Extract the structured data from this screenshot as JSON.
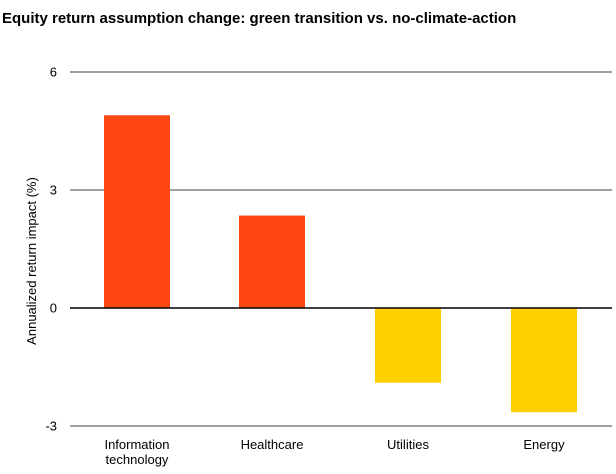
{
  "chart_data": {
    "type": "bar",
    "title": "Equity return assumption change: green transition vs. no-climate-action",
    "ylabel": "Annualized return impact (%)",
    "xlabel": "",
    "categories": [
      [
        "Information",
        "technology"
      ],
      [
        "Healthcare"
      ],
      [
        "Utilities"
      ],
      [
        "Energy"
      ]
    ],
    "values": [
      4.9,
      2.35,
      -1.9,
      -2.65
    ],
    "colors": [
      "#ff4713",
      "#ff4713",
      "#ffd000",
      "#ffd000"
    ],
    "ylim": [
      -3,
      6
    ],
    "yticks": [
      6,
      3,
      0,
      -3
    ],
    "grid": true
  }
}
